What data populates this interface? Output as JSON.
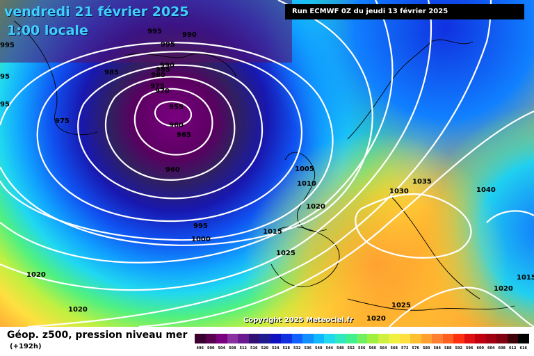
{
  "header": {
    "date": "vendredi 21 février 2025",
    "time": "1:00 locale",
    "run": "Run ECMWF 0Z du jeudi 13 février 2025"
  },
  "copyright": "Copyright 2025 Meteociel.fr",
  "footer": {
    "product": "Géop. z500, pression niveau mer",
    "step": "(+192h)"
  },
  "scale": {
    "values": [
      "496",
      "500",
      "504",
      "508",
      "512",
      "516",
      "520",
      "524",
      "528",
      "532",
      "536",
      "540",
      "544",
      "548",
      "552",
      "556",
      "560",
      "564",
      "568",
      "572",
      "576",
      "580",
      "584",
      "588",
      "592",
      "596",
      "600",
      "604",
      "608",
      "612",
      "616"
    ],
    "colors": [
      "#3a0030",
      "#5a0050",
      "#7a0080",
      "#8a30a0",
      "#6a1a90",
      "#301070",
      "#201a90",
      "#1010c0",
      "#1030e0",
      "#1060ff",
      "#1090ff",
      "#10b8ff",
      "#20d8f0",
      "#30e8c0",
      "#40f090",
      "#70f060",
      "#a0f040",
      "#d0f040",
      "#f0f040",
      "#ffe040",
      "#ffc030",
      "#ffa030",
      "#ff8030",
      "#ff6020",
      "#ff3010",
      "#e01010",
      "#c00010",
      "#a00010",
      "#800010",
      "#400008",
      "#000000"
    ]
  },
  "isobars": [
    {
      "label": "995",
      "pos": "a"
    },
    {
      "label": "990",
      "pos": "b"
    },
    {
      "label": "995",
      "pos": "c"
    },
    {
      "label": "985",
      "pos": "d"
    },
    {
      "label": "990",
      "pos": "e"
    },
    {
      "label": "985",
      "pos": "f"
    },
    {
      "label": "980",
      "pos": "g"
    },
    {
      "label": "975",
      "pos": "h"
    },
    {
      "label": "970",
      "pos": "i"
    },
    {
      "label": "955",
      "pos": "j"
    },
    {
      "label": "960",
      "pos": "k"
    },
    {
      "label": "965",
      "pos": "l"
    },
    {
      "label": "975",
      "pos": "m"
    },
    {
      "label": "960",
      "pos": "n"
    },
    {
      "label": "995",
      "pos": "o"
    },
    {
      "label": "1000",
      "pos": "p"
    },
    {
      "label": "1005",
      "pos": "q"
    },
    {
      "label": "1010",
      "pos": "r"
    },
    {
      "label": "1020",
      "pos": "s"
    },
    {
      "label": "1015",
      "pos": "t"
    },
    {
      "label": "1025",
      "pos": "u"
    },
    {
      "label": "1030",
      "pos": "v"
    },
    {
      "label": "1035",
      "pos": "w"
    },
    {
      "label": "1040",
      "pos": "x"
    },
    {
      "label": "1020",
      "pos": "y"
    },
    {
      "label": "1020",
      "pos": "z"
    },
    {
      "label": "1020",
      "pos": "aa"
    },
    {
      "label": "1025",
      "pos": "bb"
    },
    {
      "label": "1020",
      "pos": "cc"
    },
    {
      "label": "1015",
      "pos": "dd"
    },
    {
      "label": "995",
      "pos": "ee"
    },
    {
      "label": "95",
      "pos": "ff"
    },
    {
      "label": "95",
      "pos": "gg"
    }
  ]
}
